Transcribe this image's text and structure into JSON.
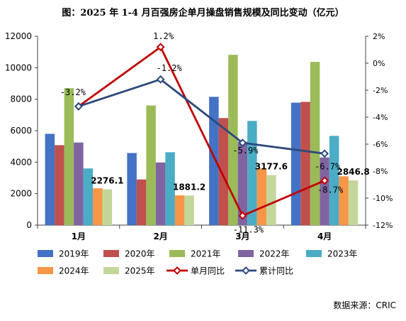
{
  "title": "图：2025 年 1-4 月百强房企单月操盘销售规模及同比变动（亿元）",
  "source": "数据来源：CRIC",
  "chart_data": {
    "type": "bar",
    "categories": [
      "1月",
      "2月",
      "3月",
      "4月"
    ],
    "ylim_left": [
      0,
      12000
    ],
    "left_ticks": [
      "0",
      "2000",
      "4000",
      "6000",
      "8000",
      "10000",
      "12000"
    ],
    "ylim_right": [
      -12,
      2
    ],
    "right_ticks": [
      "-12%",
      "-10%",
      "-8%",
      "-6%",
      "-4%",
      "-2%",
      "0%",
      "2%"
    ],
    "grid": false,
    "legend_position": "bottom",
    "series": [
      {
        "name": "2019年",
        "color": "#4472C4",
        "values": [
          5800,
          4580,
          8150,
          7780
        ]
      },
      {
        "name": "2020年",
        "color": "#C0504D",
        "values": [
          5080,
          2900,
          6800,
          7830
        ]
      },
      {
        "name": "2021年",
        "color": "#9BBB59",
        "values": [
          8700,
          7600,
          10820,
          10370
        ]
      },
      {
        "name": "2022年",
        "color": "#8064A2",
        "values": [
          5250,
          3980,
          5300,
          4300
        ]
      },
      {
        "name": "2023年",
        "color": "#4BACC6",
        "values": [
          3600,
          4630,
          6620,
          5670
        ]
      },
      {
        "name": "2024年",
        "color": "#F79646",
        "values": [
          2340,
          1890,
          3600,
          3100
        ]
      },
      {
        "name": "2025年",
        "color": "#C4D79B",
        "values": [
          2276.1,
          1881.2,
          3177.6,
          2846.8
        ],
        "labels": [
          "2276.1",
          "1881.2",
          "3177.6",
          "2846.8"
        ]
      }
    ],
    "lines": [
      {
        "name": "单月同比",
        "color": "#C00000",
        "values": [
          -3.2,
          1.2,
          -11.3,
          -8.7
        ],
        "labels": [
          "-3.2%",
          "1.2%",
          "-11.3%",
          "-8.7%"
        ]
      },
      {
        "name": "累计同比",
        "color": "#2E4A7D",
        "values": [
          -3.2,
          -1.2,
          -5.9,
          -6.7
        ],
        "labels": [
          "",
          "-1.2%",
          "-5.9%",
          "-6.7%"
        ]
      }
    ]
  }
}
